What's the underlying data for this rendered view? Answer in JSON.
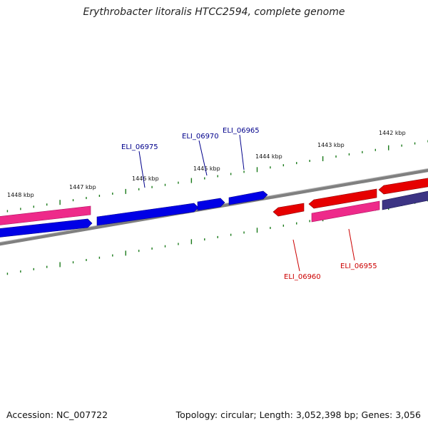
{
  "title": "Erythrobacter litoralis HTCC2594, complete genome",
  "footer": {
    "accession": "Accession: NC_007722",
    "stats": "Topology: circular; Length: 3,052,398 bp; Genes: 3,056"
  },
  "colors": {
    "forward_gene": "#0000e6",
    "reverse_gene": "#e60000",
    "pink_gene": "#ee2a8a",
    "purple_gene": "#3c3484",
    "backbone": "#808080",
    "ticks": "#1a7a1a",
    "forward_label": "#00008b",
    "reverse_label": "#cc0000"
  },
  "scale_labels": [
    "1448 kbp",
    "1447 kbp",
    "1446 kbp",
    "1445 kbp",
    "1444 kbp",
    "1443 kbp",
    "1442 kbp"
  ],
  "genes": [
    {
      "id": "ELI_06975",
      "strand": "forward"
    },
    {
      "id": "ELI_06970",
      "strand": "forward"
    },
    {
      "id": "ELI_06965",
      "strand": "forward"
    },
    {
      "id": "ELI_06960",
      "strand": "reverse"
    },
    {
      "id": "ELI_06955",
      "strand": "reverse"
    }
  ]
}
